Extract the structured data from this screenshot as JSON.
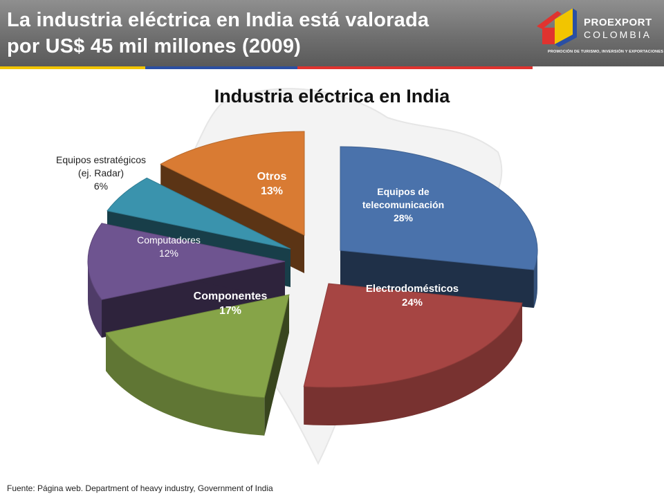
{
  "header": {
    "title_line1": "La industria eléctrica en India está valorada",
    "title_line2": "por US$ 45 mil millones (2009)"
  },
  "logo": {
    "name": "PROEXPORT",
    "country": "COLOMBIA",
    "tagline": "PROMOCIÓN DE TURISMO, INVERSIÓN Y EXPORTACIONES"
  },
  "chart_data": {
    "type": "pie",
    "title": "Industria eléctrica en India",
    "style": "3d-exploded",
    "unit": "%",
    "slices": [
      {
        "label": "Equipos de telecomunicación",
        "label_lines": [
          "Equipos de",
          "telecomunicación"
        ],
        "value": 28,
        "value_text": "28%",
        "color": "#4a72ab"
      },
      {
        "label": "Electrodomésticos",
        "label_lines": [
          "Electrodomésticos"
        ],
        "value": 24,
        "value_text": "24%",
        "color": "#a64543"
      },
      {
        "label": "Componentes",
        "label_lines": [
          "Componentes"
        ],
        "value": 17,
        "value_text": "17%",
        "color": "#86a448"
      },
      {
        "label": "Computadores",
        "label_lines": [
          "Computadores"
        ],
        "value": 12,
        "value_text": "12%",
        "color": "#6e5490"
      },
      {
        "label": "Equipos estratégicos (ej. Radar)",
        "label_lines": [
          "Equipos estratégicos",
          "(ej. Radar)"
        ],
        "value": 6,
        "value_text": "6%",
        "color": "#3a93ad"
      },
      {
        "label": "Otros",
        "label_lines": [
          "Otros"
        ],
        "value": 13,
        "value_text": "13%",
        "color": "#d97b33"
      }
    ]
  },
  "source": "Fuente: Página web. Department of heavy industry, Government of India"
}
